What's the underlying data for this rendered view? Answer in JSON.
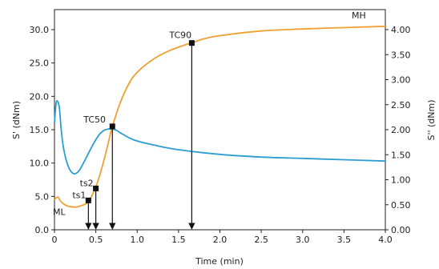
{
  "chart_data": {
    "type": "line",
    "title": "",
    "xlabel": "Time (min)",
    "ylabel_left": "S' (dNm)",
    "ylabel_right": "S'' (dNm)",
    "xlim": [
      0,
      4
    ],
    "ylim_left": [
      0,
      33
    ],
    "ylim_right": [
      0,
      4.4
    ],
    "x_ticks": [
      "0",
      "0.5",
      "1.0",
      "1.5",
      "2.0",
      "2.5",
      "3.0",
      "3.5",
      "4.0"
    ],
    "y_left_ticks": [
      "0.0",
      "5.0",
      "10.0",
      "15.0",
      "20.0",
      "25.0",
      "30.0"
    ],
    "y_right_ticks": [
      "0.00",
      "0.50",
      "1.00",
      "1.50",
      "2.00",
      "2.50",
      "3.00",
      "3.50",
      "4.00"
    ],
    "grid": false,
    "series": [
      {
        "color": "#f0a030",
        "axis": "left",
        "x": [
          0,
          0.04,
          0.08,
          0.15,
          0.25,
          0.32,
          0.38,
          0.42,
          0.46,
          0.5,
          0.55,
          0.6,
          0.65,
          0.7,
          0.8,
          0.9,
          1.0,
          1.2,
          1.4,
          1.6,
          1.66,
          1.8,
          2.0,
          2.5,
          3.0,
          3.5,
          4.0
        ],
        "y": [
          4.5,
          4.9,
          4.2,
          3.6,
          3.4,
          3.6,
          3.9,
          4.4,
          5.3,
          6.4,
          8.3,
          10.5,
          13.0,
          15.5,
          19.2,
          21.9,
          23.6,
          25.6,
          26.9,
          27.8,
          28.0,
          28.6,
          29.1,
          29.8,
          30.1,
          30.3,
          30.5
        ]
      },
      {
        "color": "#2a9ed0",
        "axis": "left",
        "x": [
          0,
          0.02,
          0.04,
          0.06,
          0.08,
          0.1,
          0.13,
          0.17,
          0.21,
          0.25,
          0.3,
          0.35,
          0.4,
          0.45,
          0.5,
          0.55,
          0.6,
          0.65,
          0.7,
          0.75,
          0.8,
          0.9,
          1.0,
          1.2,
          1.5,
          2.0,
          2.5,
          3.0,
          3.5,
          4.0
        ],
        "y": [
          16.0,
          19.0,
          19.2,
          18.2,
          15.2,
          13.0,
          11.0,
          9.4,
          8.6,
          8.4,
          8.9,
          10.0,
          11.2,
          12.4,
          13.5,
          14.4,
          14.9,
          15.1,
          15.1,
          14.9,
          14.5,
          13.8,
          13.3,
          12.7,
          12.0,
          11.3,
          10.9,
          10.7,
          10.5,
          10.3
        ]
      }
    ],
    "annotations": [
      {
        "label": "ML",
        "x": 0.3,
        "y": 3.4
      },
      {
        "label": "ts1",
        "x": 0.41,
        "y": 4.4
      },
      {
        "label": "ts2",
        "x": 0.5,
        "y": 6.2
      },
      {
        "label": "TC50",
        "x": 0.7,
        "y": 15.5
      },
      {
        "label": "TC90",
        "x": 1.66,
        "y": 28.0
      },
      {
        "label": "MH",
        "x": 4.0,
        "y": 30.5
      }
    ]
  }
}
